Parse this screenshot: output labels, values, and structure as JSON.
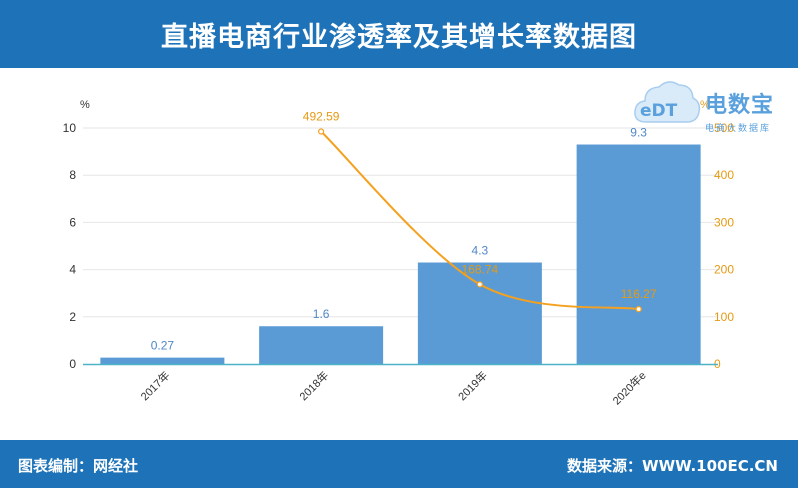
{
  "title": "直播电商行业渗透率及其增长率数据图",
  "footer": {
    "left": "图表编制：网经社",
    "right": "数据来源：WWW.100EC.CN"
  },
  "logo": {
    "mark": "eDT",
    "name": "电数宝",
    "sub": "电商大数据库"
  },
  "chart_data": {
    "type": "bar",
    "categories": [
      "2017年",
      "2018年",
      "2019年",
      "2020年e"
    ],
    "series": [
      {
        "type": "bar",
        "axis": "left",
        "values": [
          0.27,
          1.6,
          4.3,
          9.3
        ],
        "labels": [
          "0.27",
          "1.6",
          "4.3",
          "9.3"
        ],
        "color": "#5b9bd5"
      },
      {
        "type": "line",
        "axis": "right",
        "values": [
          null,
          492.59,
          168.74,
          116.27
        ],
        "labels": [
          "",
          "492.59",
          "168.74",
          "116.27"
        ],
        "color": "#f5a11f"
      }
    ],
    "yleft": {
      "unit": "%",
      "lim": [
        0,
        10
      ],
      "ticks": [
        "0",
        "2",
        "4",
        "6",
        "8",
        "10"
      ]
    },
    "yright": {
      "unit": "%",
      "lim": [
        0,
        500
      ],
      "ticks": [
        "0",
        "100",
        "200",
        "300",
        "400",
        "500"
      ]
    },
    "grid": true,
    "legend": "none"
  }
}
